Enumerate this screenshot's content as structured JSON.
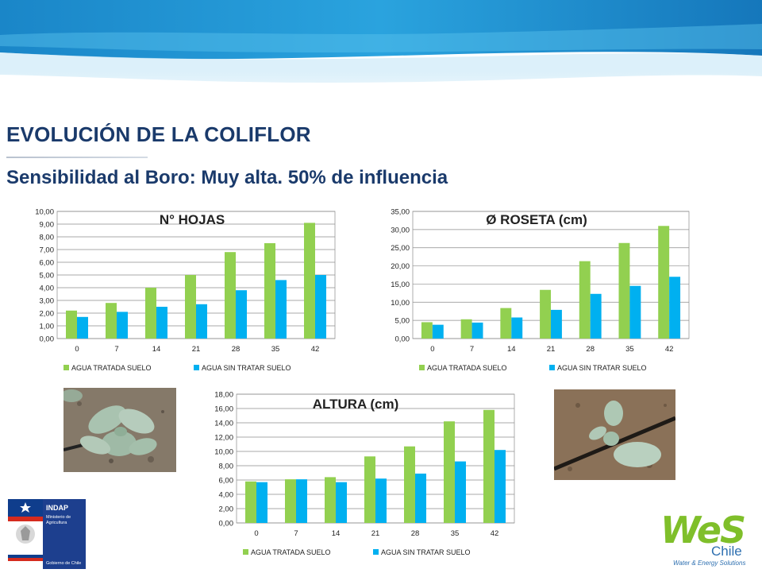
{
  "title": "EVOLUCIÓN DE LA COLIFLOR",
  "subtitle": "Sensibilidad al Boro: Muy alta. 50% de influencia",
  "chart_data": [
    {
      "type": "bar",
      "title": "N° HOJAS",
      "categories": [
        "0",
        "7",
        "14",
        "21",
        "28",
        "35",
        "42"
      ],
      "series": [
        {
          "name": "AGUA TRATADA SUELO",
          "color": "#92d050",
          "values": [
            2.2,
            2.8,
            4.0,
            5.0,
            6.8,
            7.5,
            9.1
          ]
        },
        {
          "name": "AGUA SIN TRATAR SUELO",
          "color": "#00b0f0",
          "values": [
            1.7,
            2.1,
            2.5,
            2.7,
            3.8,
            4.6,
            5.0
          ]
        }
      ],
      "ylim": [
        0,
        10
      ],
      "ytick_step": 1,
      "ytick_labels": [
        "0,00",
        "1,00",
        "2,00",
        "3,00",
        "4,00",
        "5,00",
        "6,00",
        "7,00",
        "8,00",
        "9,00",
        "10,00"
      ],
      "grid": true,
      "legend": "bottom"
    },
    {
      "type": "bar",
      "title": "Ø ROSETA (cm)",
      "categories": [
        "0",
        "7",
        "14",
        "21",
        "28",
        "35",
        "42"
      ],
      "series": [
        {
          "name": "AGUA TRATADA SUELO",
          "color": "#92d050",
          "values": [
            4.5,
            5.3,
            8.4,
            13.4,
            21.3,
            26.3,
            31.0
          ]
        },
        {
          "name": "AGUA SIN TRATAR SUELO",
          "color": "#00b0f0",
          "values": [
            3.8,
            4.4,
            5.8,
            7.9,
            12.3,
            14.5,
            17.0
          ]
        }
      ],
      "ylim": [
        0,
        35
      ],
      "ytick_step": 5,
      "ytick_labels": [
        "0,00",
        "5,00",
        "10,00",
        "15,00",
        "20,00",
        "25,00",
        "30,00",
        "35,00"
      ],
      "grid": true,
      "legend": "bottom"
    },
    {
      "type": "bar",
      "title": "ALTURA (cm)",
      "categories": [
        "0",
        "7",
        "14",
        "21",
        "28",
        "35",
        "42"
      ],
      "series": [
        {
          "name": "AGUA TRATADA SUELO",
          "color": "#92d050",
          "values": [
            5.8,
            6.1,
            6.4,
            9.3,
            10.7,
            14.2,
            15.8
          ]
        },
        {
          "name": "AGUA SIN TRATAR SUELO",
          "color": "#00b0f0",
          "values": [
            5.7,
            6.1,
            5.7,
            6.2,
            6.9,
            8.6,
            10.2
          ]
        }
      ],
      "ylim": [
        0,
        18
      ],
      "ytick_step": 2,
      "ytick_labels": [
        "0,00",
        "2,00",
        "4,00",
        "6,00",
        "8,00",
        "10,00",
        "12,00",
        "14,00",
        "16,00",
        "18,00"
      ],
      "grid": true,
      "legend": "bottom"
    }
  ],
  "logos": {
    "indap": "INDAP",
    "ministerio": "Ministerio de",
    "agricultura": "Agricultura",
    "gobierno": "Gobierno de Chile",
    "wes": "WeS",
    "chile": "Chile",
    "tagline": "Water & Energy Solutions"
  },
  "colors": {
    "title": "#1a3a6b",
    "banner": "#1c7fc4",
    "green": "#92d050",
    "blue": "#00b0f0"
  }
}
